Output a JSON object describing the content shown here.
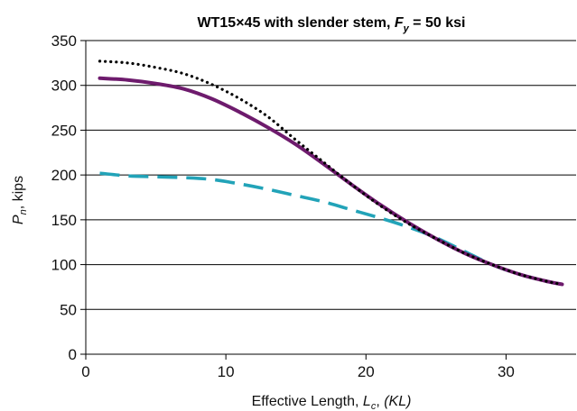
{
  "chart_data": {
    "type": "line",
    "title": {
      "main": "WT15×45 with slender stem, ",
      "var": "F",
      "sub": "y",
      "rest": " = 50 ksi"
    },
    "xlabel": {
      "main": "Effective Length, ",
      "var": "L",
      "sub": "c",
      "sep": ", ",
      "rest": "(KL)"
    },
    "ylabel": {
      "var": "P",
      "sub": "n",
      "rest": ", kips"
    },
    "xlim": [
      0,
      35
    ],
    "ylim": [
      0,
      350
    ],
    "xticks": [
      0,
      10,
      20,
      30
    ],
    "yticks": [
      0,
      50,
      100,
      150,
      200,
      250,
      300,
      350
    ],
    "grid": "horizontal",
    "legend": "none",
    "series": [
      {
        "style": "dotted",
        "color": "#000000",
        "x": [
          1,
          3,
          5,
          7,
          9,
          11,
          13,
          15,
          17,
          19,
          21,
          23,
          25,
          27,
          29,
          31,
          33,
          34
        ],
        "y": [
          327,
          325,
          320,
          313,
          301,
          285,
          265,
          239,
          214,
          189,
          166,
          146,
          129,
          113,
          100,
          89,
          81,
          78
        ]
      },
      {
        "style": "solid",
        "color": "#6e1b6d",
        "x": [
          1,
          3,
          5,
          7,
          9,
          11,
          13,
          15,
          17,
          19,
          21,
          23,
          25,
          27,
          29,
          31,
          33,
          34
        ],
        "y": [
          308,
          306,
          302,
          296,
          285,
          270,
          253,
          234,
          212,
          189,
          167,
          147,
          129,
          113,
          100,
          89,
          81,
          78
        ]
      },
      {
        "style": "dashed",
        "color": "#22a3b8",
        "x": [
          1,
          3,
          5,
          7,
          9,
          11,
          13,
          15,
          17,
          19,
          21,
          23,
          25,
          27,
          29,
          31,
          33,
          34
        ],
        "y": [
          202,
          199,
          198,
          197,
          195,
          190,
          184,
          177,
          170,
          161,
          152,
          142,
          130,
          115,
          100,
          89,
          81,
          78
        ]
      }
    ]
  }
}
